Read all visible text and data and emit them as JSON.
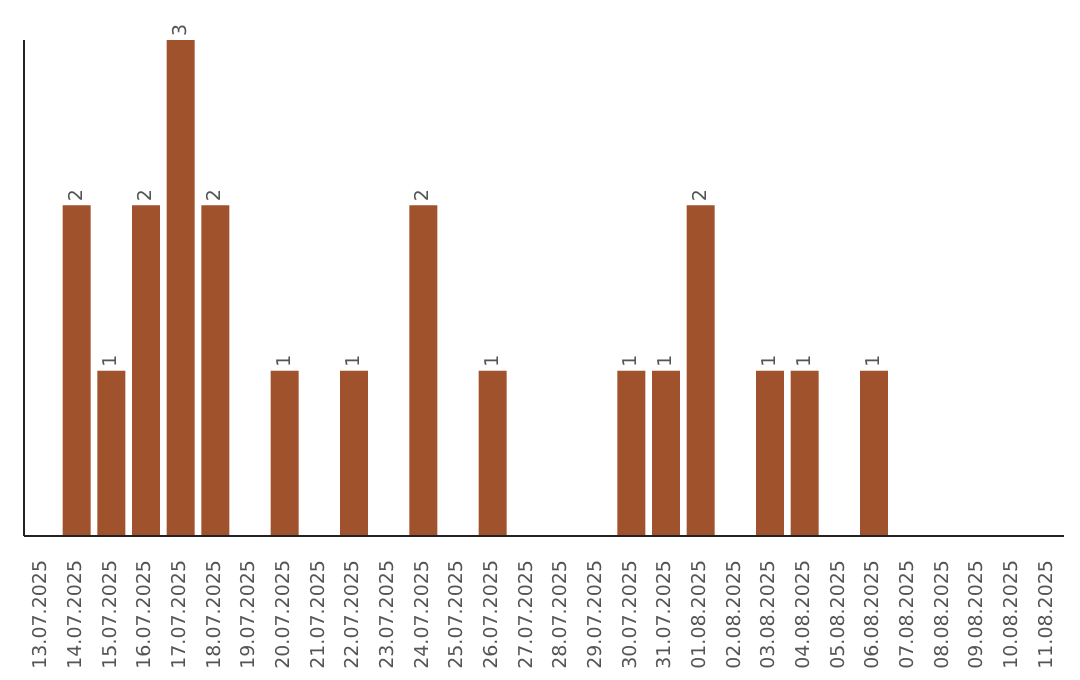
{
  "chart_data": {
    "type": "bar",
    "categories": [
      "13.07.2025",
      "14.07.2025",
      "15.07.2025",
      "16.07.2025",
      "17.07.2025",
      "18.07.2025",
      "19.07.2025",
      "20.07.2025",
      "21.07.2025",
      "22.07.2025",
      "23.07.2025",
      "24.07.2025",
      "25.07.2025",
      "26.07.2025",
      "27.07.2025",
      "28.07.2025",
      "29.07.2025",
      "30.07.2025",
      "31.07.2025",
      "01.08.2025",
      "02.08.2025",
      "03.08.2025",
      "04.08.2025",
      "05.08.2025",
      "06.08.2025",
      "07.08.2025",
      "08.08.2025",
      "09.08.2025",
      "10.08.2025",
      "11.08.2025"
    ],
    "values": [
      0,
      2,
      1,
      2,
      3,
      2,
      0,
      1,
      0,
      1,
      0,
      2,
      0,
      1,
      0,
      0,
      0,
      1,
      1,
      2,
      0,
      1,
      1,
      0,
      1,
      0,
      0,
      0,
      0,
      0
    ],
    "value_labels": [
      null,
      "2",
      "1",
      "2",
      "3",
      "2",
      null,
      "1",
      null,
      "1",
      null,
      "2",
      null,
      "1",
      null,
      null,
      null,
      "1",
      "1",
      "2",
      null,
      "1",
      "1",
      null,
      "1",
      null,
      null,
      null,
      null,
      null
    ],
    "color": "#a0522d",
    "tick_labels": "x"
  }
}
